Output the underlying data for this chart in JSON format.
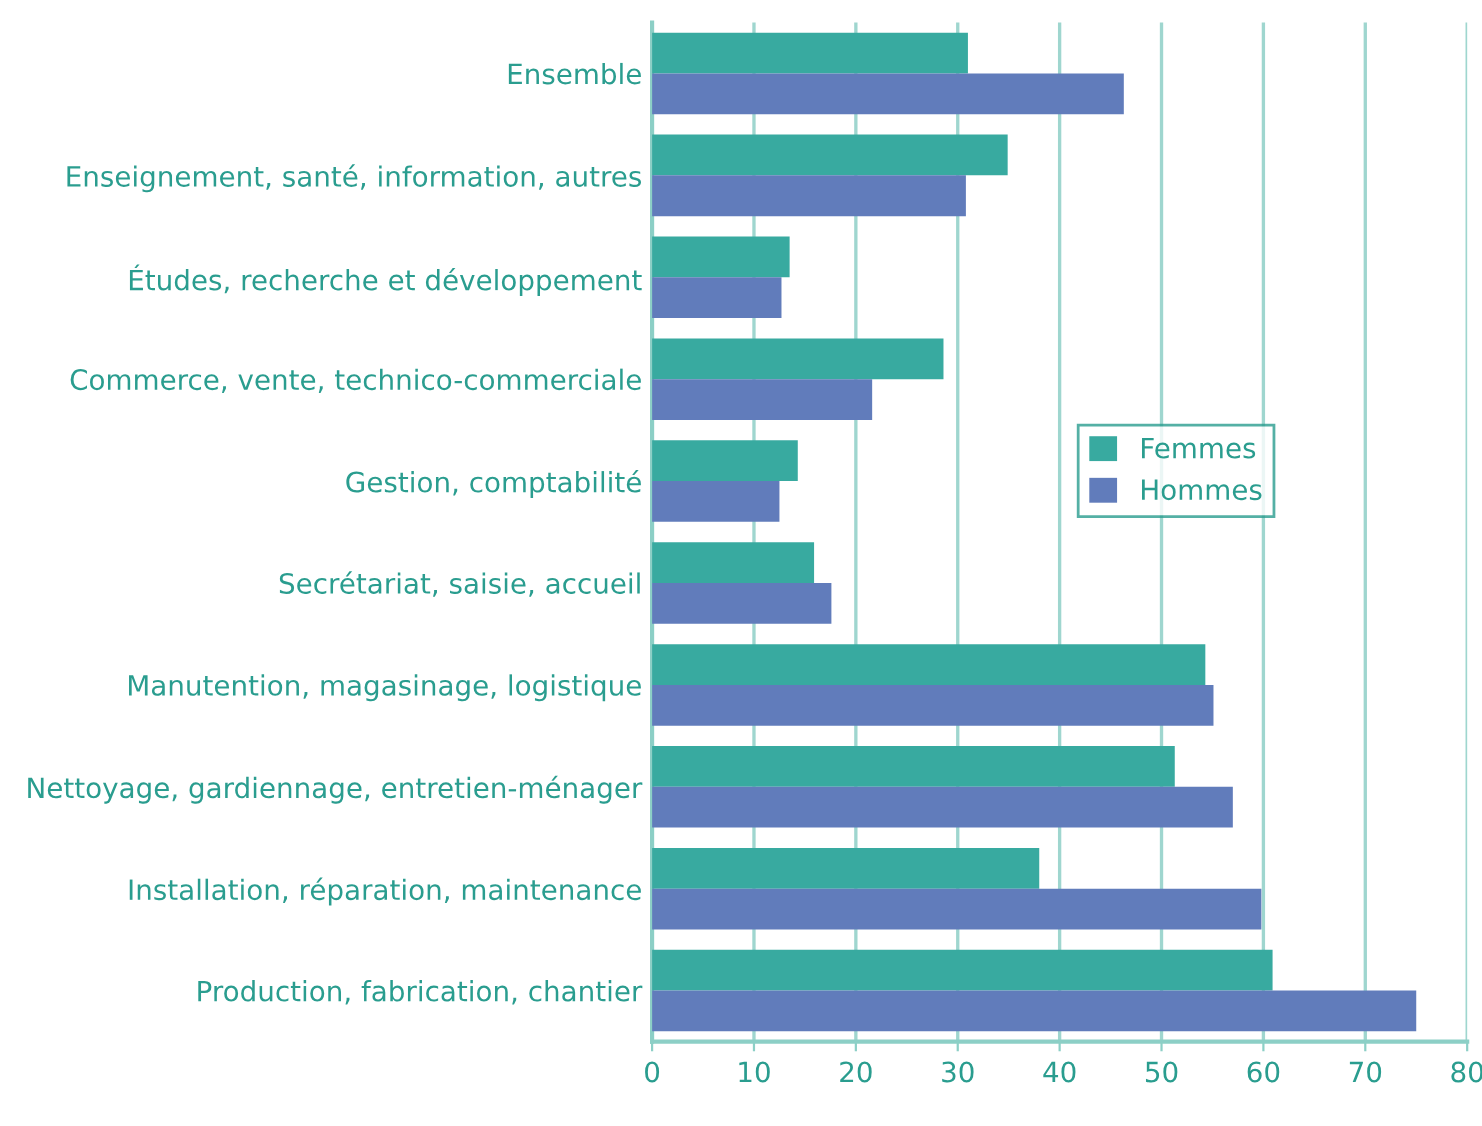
{
  "chart_data": {
    "type": "bar",
    "orientation": "horizontal",
    "categories": [
      "Ensemble",
      "Enseignement, santé, information, autres",
      "Études, recherche et développement",
      "Commerce, vente, technico-commerciale",
      "Gestion, comptabilité",
      "Secrétariat, saisie, accueil",
      "Manutention, magasinage, logistique",
      "Nettoyage, gardiennage, entretien-ménager",
      "Installation, réparation, maintenance",
      "Production, fabrication, chantier"
    ],
    "series": [
      {
        "name": "Femmes",
        "color": "#38aaa0",
        "values": [
          31.0,
          34.9,
          13.5,
          28.6,
          14.3,
          15.9,
          54.3,
          51.3,
          38.0,
          60.9
        ]
      },
      {
        "name": "Hommes",
        "color": "#617cbb",
        "values": [
          46.3,
          30.8,
          12.7,
          21.6,
          12.5,
          17.6,
          55.1,
          57.0,
          59.8,
          75.0
        ]
      }
    ],
    "xlim": [
      0,
      80
    ],
    "xticks": [
      0,
      10,
      20,
      30,
      40,
      50,
      60,
      70,
      80
    ],
    "grid": "x",
    "legend": "right"
  }
}
